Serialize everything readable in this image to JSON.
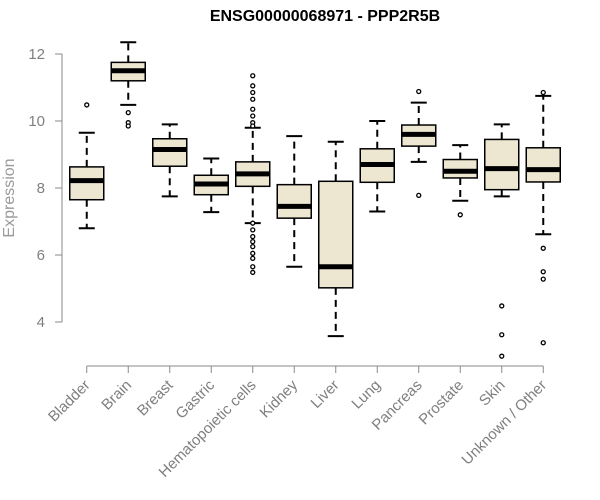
{
  "chart_data": {
    "type": "boxplot",
    "title": "ENSG00000068971 - PPP2R5B",
    "ylabel": "Expression",
    "xlabel": "",
    "ylim": [
      3.2,
      12.45
    ],
    "yticks": [
      4,
      6,
      8,
      10,
      12
    ],
    "grid": false,
    "legend": "none",
    "box_fill": "#ede7d1",
    "box_stroke": "#000000",
    "axis_color": "#888888",
    "categories": [
      "Bladder",
      "Brain",
      "Breast",
      "Gastric",
      "Hematopoietic cells",
      "Kidney",
      "Liver",
      "Lung",
      "Pancreas",
      "Prostate",
      "Skin",
      "Unknown / Other"
    ],
    "boxes": [
      {
        "label": "Bladder",
        "whisker_low": 6.8,
        "q1": 7.65,
        "median": 8.22,
        "q3": 8.63,
        "whisker_high": 9.65,
        "outliers": [
          10.48
        ]
      },
      {
        "label": "Brain",
        "whisker_low": 10.48,
        "q1": 11.2,
        "median": 11.5,
        "q3": 11.75,
        "whisker_high": 12.35,
        "outliers": [
          10.25,
          9.95,
          9.85
        ]
      },
      {
        "label": "Breast",
        "whisker_low": 7.75,
        "q1": 8.65,
        "median": 9.15,
        "q3": 9.47,
        "whisker_high": 9.9,
        "outliers": []
      },
      {
        "label": "Gastric",
        "whisker_low": 7.28,
        "q1": 7.8,
        "median": 8.12,
        "q3": 8.38,
        "whisker_high": 8.88,
        "outliers": []
      },
      {
        "label": "Hematopoietic cells",
        "whisker_low": 6.95,
        "q1": 8.05,
        "median": 8.42,
        "q3": 8.78,
        "whisker_high": 9.8,
        "outliers": [
          11.35,
          11.05,
          10.85,
          10.65,
          10.35,
          10.15,
          9.95,
          9.85,
          6.95,
          6.75,
          6.55,
          6.4,
          6.25,
          6.05,
          5.9,
          5.65,
          5.48
        ]
      },
      {
        "label": "Kidney",
        "whisker_low": 5.65,
        "q1": 7.1,
        "median": 7.45,
        "q3": 8.1,
        "whisker_high": 9.55,
        "outliers": []
      },
      {
        "label": "Liver",
        "whisker_low": 3.58,
        "q1": 5.02,
        "median": 5.65,
        "q3": 8.2,
        "whisker_high": 9.38,
        "outliers": []
      },
      {
        "label": "Lung",
        "whisker_low": 7.3,
        "q1": 8.17,
        "median": 8.7,
        "q3": 9.17,
        "whisker_high": 10.0,
        "outliers": []
      },
      {
        "label": "Pancreas",
        "whisker_low": 8.78,
        "q1": 9.25,
        "median": 9.6,
        "q3": 9.88,
        "whisker_high": 10.55,
        "outliers": [
          10.88,
          7.78
        ]
      },
      {
        "label": "Prostate",
        "whisker_low": 7.62,
        "q1": 8.3,
        "median": 8.5,
        "q3": 8.85,
        "whisker_high": 9.28,
        "outliers": [
          7.2
        ]
      },
      {
        "label": "Skin",
        "whisker_low": 7.75,
        "q1": 7.95,
        "median": 8.58,
        "q3": 9.45,
        "whisker_high": 9.9,
        "outliers": [
          4.48,
          3.62,
          2.98
        ]
      },
      {
        "label": "Unknown / Other",
        "whisker_low": 6.62,
        "q1": 8.18,
        "median": 8.55,
        "q3": 9.2,
        "whisker_high": 10.75,
        "outliers": [
          10.85,
          6.2,
          5.5,
          5.28,
          3.38
        ]
      }
    ]
  }
}
